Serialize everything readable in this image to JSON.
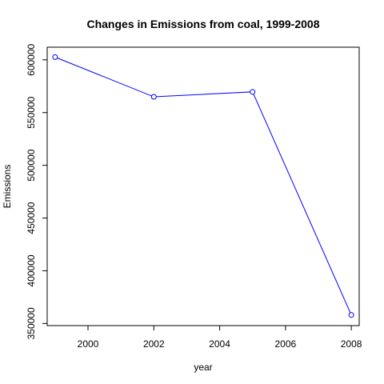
{
  "chart_data": {
    "type": "line",
    "title": "Changes in Emissions from coal, 1999-2008",
    "xlabel": "year",
    "ylabel": "Emissions",
    "x": [
      1999,
      2002,
      2005,
      2008
    ],
    "series": [
      {
        "values": [
          602625,
          564940,
          569655,
          358084
        ],
        "color": "#0000ff",
        "marker": "open-circle"
      }
    ],
    "xlim": [
      1998.76,
      2008.24
    ],
    "ylim": [
      348000,
      612000
    ],
    "x_ticks": [
      2000,
      2002,
      2004,
      2006,
      2008
    ],
    "y_ticks": [
      350000,
      400000,
      450000,
      500000,
      550000,
      600000
    ],
    "x_tick_labels": [
      "2000",
      "2002",
      "2004",
      "2006",
      "2008"
    ],
    "y_tick_labels": [
      "350000",
      "400000",
      "450000",
      "500000",
      "550000",
      "600000"
    ],
    "grid": false,
    "legend": "none"
  }
}
